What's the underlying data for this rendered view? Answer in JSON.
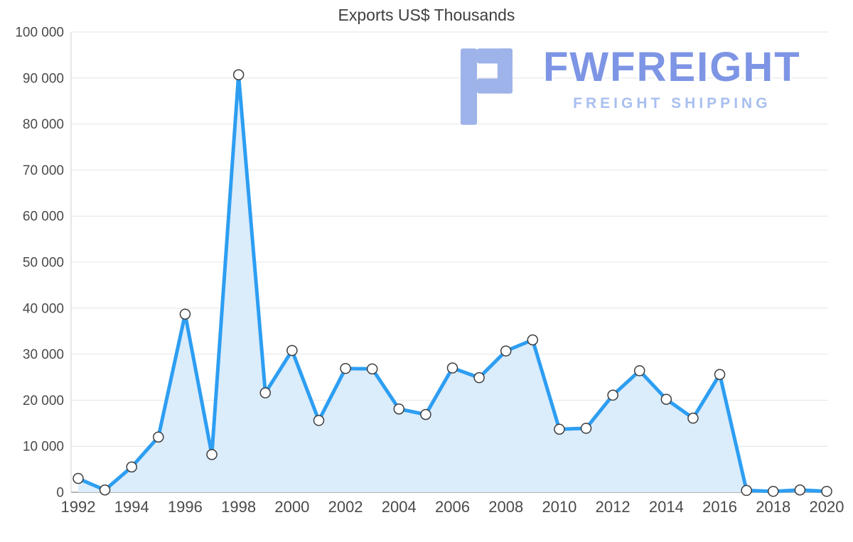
{
  "logo": {
    "name": "FWFREIGHT",
    "subtitle": "FREIGHT SHIPPING",
    "icon_color": "#9db3e9"
  },
  "chart_data": {
    "type": "area",
    "title": "Exports US$ Thousands",
    "xlabel": "",
    "ylabel": "",
    "x": [
      1992,
      1993,
      1994,
      1995,
      1996,
      1997,
      1998,
      1999,
      2000,
      2001,
      2002,
      2003,
      2004,
      2005,
      2006,
      2007,
      2008,
      2009,
      2010,
      2011,
      2012,
      2013,
      2014,
      2015,
      2016,
      2017,
      2018,
      2019,
      2020
    ],
    "values": [
      3000,
      500,
      5500,
      12000,
      38700,
      8200,
      90700,
      21600,
      30800,
      15600,
      26900,
      26800,
      18100,
      16900,
      27000,
      24900,
      30700,
      33100,
      13700,
      13900,
      21100,
      26400,
      20200,
      16100,
      25600,
      400,
      200,
      500,
      200
    ],
    "ylim": [
      0,
      100000
    ],
    "y_ticks": [
      0,
      10000,
      20000,
      30000,
      40000,
      50000,
      60000,
      70000,
      80000,
      90000,
      100000
    ],
    "x_ticks": [
      1992,
      1994,
      1996,
      1998,
      2000,
      2002,
      2004,
      2006,
      2008,
      2010,
      2012,
      2014,
      2016,
      2018,
      2020
    ],
    "grid": true,
    "legend": "none",
    "colors": {
      "line": "#2d9ef2",
      "fill": "#dbecfb",
      "marker_fill": "#ffffff",
      "marker_stroke": "#3d3d3d",
      "grid": "#e4e4e4",
      "axis": "#9b9b9b",
      "left_axis": "#cfcfcf",
      "tick_label": "#4a4a4a"
    }
  }
}
